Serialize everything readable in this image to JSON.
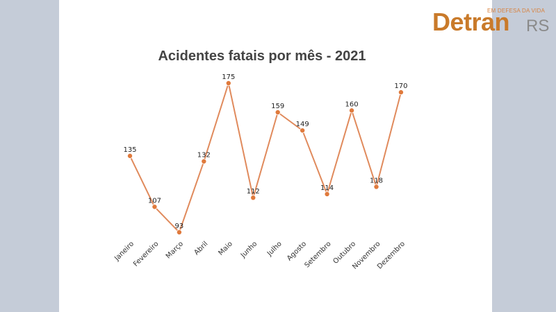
{
  "logo": {
    "tagline": "EM DEFESA DA VIDA",
    "word": "Detran",
    "suffix": "RS"
  },
  "colors": {
    "background": "#c5ccd8",
    "panel": "#ffffff",
    "line": "#e08a5c",
    "marker": "#e07a3c",
    "brand": "#c97a2a"
  },
  "chart_data": {
    "type": "line",
    "title": "Acidentes fatais por mês - 2021",
    "xlabel": "",
    "ylabel": "",
    "grid": false,
    "categories": [
      "Janeiro",
      "Fevereiro",
      "Março",
      "Abril",
      "Maio",
      "Junho",
      "Julho",
      "Agosto",
      "Setembro",
      "Outubro",
      "Novembro",
      "Dezembro"
    ],
    "series": [
      {
        "values": [
          135,
          107,
          93,
          132,
          175,
          112,
          159,
          149,
          114,
          160,
          118,
          170
        ]
      }
    ],
    "ylim": [
      93,
      175
    ]
  }
}
